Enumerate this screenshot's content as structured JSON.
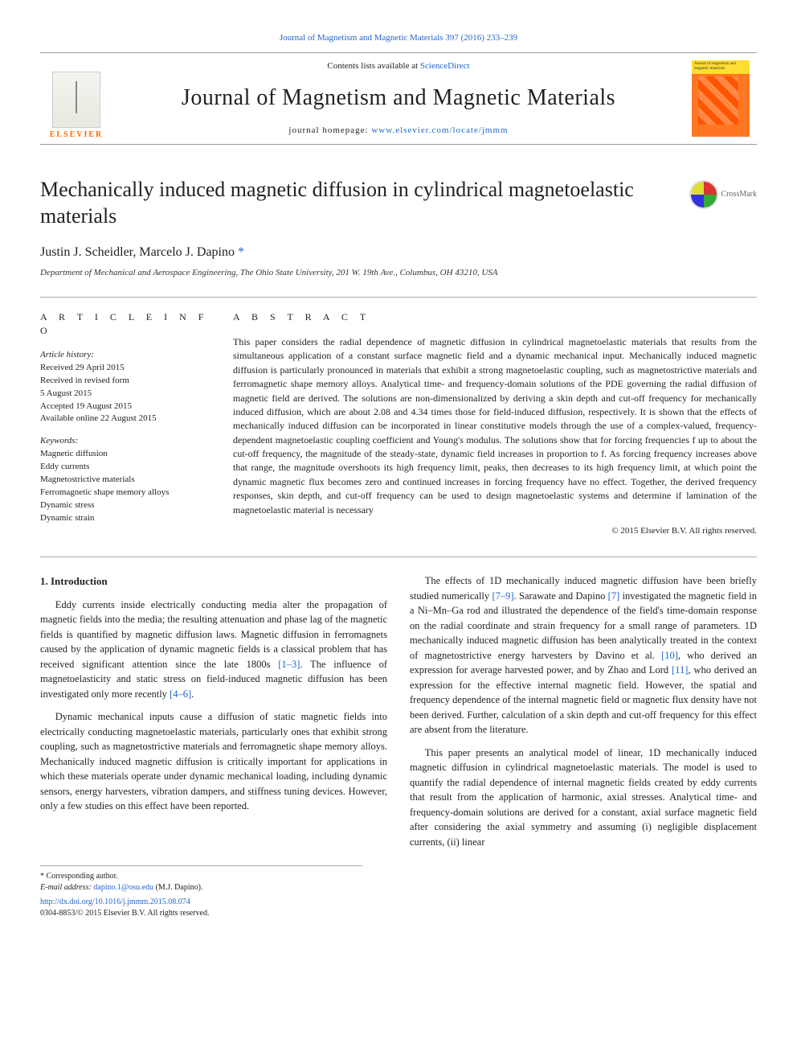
{
  "topLink": {
    "journal": "Journal of Magnetism and Magnetic Materials",
    "citation": "397 (2016) 233–239"
  },
  "header": {
    "contentsPrefix": "Contents lists available at ",
    "contentsLink": "ScienceDirect",
    "journalTitle": "Journal of Magnetism and Magnetic Materials",
    "homepagePrefix": "journal homepage: ",
    "homepageLink": "www.elsevier.com/locate/jmmm",
    "elsevier": "ELSEVIER"
  },
  "article": {
    "title": "Mechanically induced magnetic diffusion in cylindrical magnetoelastic materials",
    "crossmark": "CrossMark",
    "authors": "Justin J. Scheidler, Marcelo J. Dapino",
    "corrMark": "*",
    "affiliation": "Department of Mechanical and Aerospace Engineering, The Ohio State University, 201 W. 19th Ave., Columbus, OH 43210, USA"
  },
  "info": {
    "sectionLabel": "A R T I C L E   I N F O",
    "historyHeading": "Article history:",
    "history": [
      "Received 29 April 2015",
      "Received in revised form",
      "5 August 2015",
      "Accepted 19 August 2015",
      "Available online 22 August 2015"
    ],
    "keywordsHeading": "Keywords:",
    "keywords": [
      "Magnetic diffusion",
      "Eddy currents",
      "Magnetostrictive materials",
      "Ferromagnetic shape memory alloys",
      "Dynamic stress",
      "Dynamic strain"
    ]
  },
  "abstract": {
    "sectionLabel": "A B S T R A C T",
    "text": "This paper considers the radial dependence of magnetic diffusion in cylindrical magnetoelastic materials that results from the simultaneous application of a constant surface magnetic field and a dynamic mechanical input. Mechanically induced magnetic diffusion is particularly pronounced in materials that exhibit a strong magnetoelastic coupling, such as magnetostrictive materials and ferromagnetic shape memory alloys. Analytical time- and frequency-domain solutions of the PDE governing the radial diffusion of magnetic field are derived. The solutions are non-dimensionalized by deriving a skin depth and cut-off frequency for mechanically induced diffusion, which are about 2.08 and 4.34 times those for field-induced diffusion, respectively. It is shown that the effects of mechanically induced diffusion can be incorporated in linear constitutive models through the use of a complex-valued, frequency-dependent magnetoelastic coupling coefficient and Young's modulus. The solutions show that for forcing frequencies f up to about the cut-off frequency, the magnitude of the steady-state, dynamic field increases in proportion to f. As forcing frequency increases above that range, the magnitude overshoots its high frequency limit, peaks, then decreases to its high frequency limit, at which point the dynamic magnetic flux becomes zero and continued increases in forcing frequency have no effect. Together, the derived frequency responses, skin depth, and cut-off frequency can be used to design magnetoelastic systems and determine if lamination of the magnetoelastic material is necessary",
    "copyright": "© 2015 Elsevier B.V. All rights reserved."
  },
  "body": {
    "heading": "1.  Introduction",
    "p1a": "Eddy currents inside electrically conducting media alter the propagation of magnetic fields into the media; the resulting attenuation and phase lag of the magnetic fields is quantified by magnetic diffusion laws. Magnetic diffusion in ferromagnets caused by the application of dynamic magnetic fields is a classical problem that has received significant attention since the late 1800s ",
    "ref1": "[1–3]",
    "p1b": ". The influence of magnetoelasticity and static stress on field-induced magnetic diffusion has been investigated only more recently ",
    "ref2": "[4–6]",
    "p1c": ".",
    "p2": "Dynamic mechanical inputs cause a diffusion of static magnetic fields into electrically conducting magnetoelastic materials, particularly ones that exhibit strong coupling, such as magnetostrictive materials and ferromagnetic shape memory alloys. Mechanically induced magnetic diffusion is critically important for applications in which these materials operate under dynamic mechanical loading, including dynamic sensors, energy harvesters, vibration dampers, and stiffness tuning devices. However, only a few studies on this effect have been reported.",
    "p3a": "The effects of 1D mechanically induced magnetic diffusion have been briefly studied numerically ",
    "ref3": "[7–9]",
    "p3b": ". Sarawate and Dapino ",
    "ref4": "[7]",
    "p3c": " investigated the magnetic field in a Ni–Mn–Ga rod and illustrated the dependence of the field's time-domain response on the radial coordinate and strain frequency for a small range of parameters. 1D mechanically induced magnetic diffusion has been analytically treated in the context of magnetostrictive energy harvesters by Davino et al. ",
    "ref5": "[10]",
    "p3d": ", who derived an expression for average harvested power, and by Zhao and Lord ",
    "ref6": "[11]",
    "p3e": ", who derived an expression for the effective internal magnetic field. However, the spatial and frequency dependence of the internal magnetic field or magnetic flux density have not been derived. Further, calculation of a skin depth and cut-off frequency for this effect are absent from the literature.",
    "p4": "This paper presents an analytical model of linear, 1D mechanically induced magnetic diffusion in cylindrical magnetoelastic materials. The model is used to quantify the radial dependence of internal magnetic fields created by eddy currents that result from the application of harmonic, axial stresses. Analytical time- and frequency-domain solutions are derived for a constant, axial surface magnetic field after considering the axial symmetry and assuming (i) negligible displacement currents, (ii) linear"
  },
  "footnote": {
    "corrLabel": "* Corresponding author.",
    "emailLabel": "E-mail address: ",
    "email": "dapino.1@osu.edu",
    "emailSuffix": " (M.J. Dapino).",
    "doi": "http://dx.doi.org/10.1016/j.jmmm.2015.08.074",
    "issn": "0304-8853/© 2015 Elsevier B.V. All rights reserved."
  },
  "coverLabel": "Journal of magnetism and magnetic materials"
}
